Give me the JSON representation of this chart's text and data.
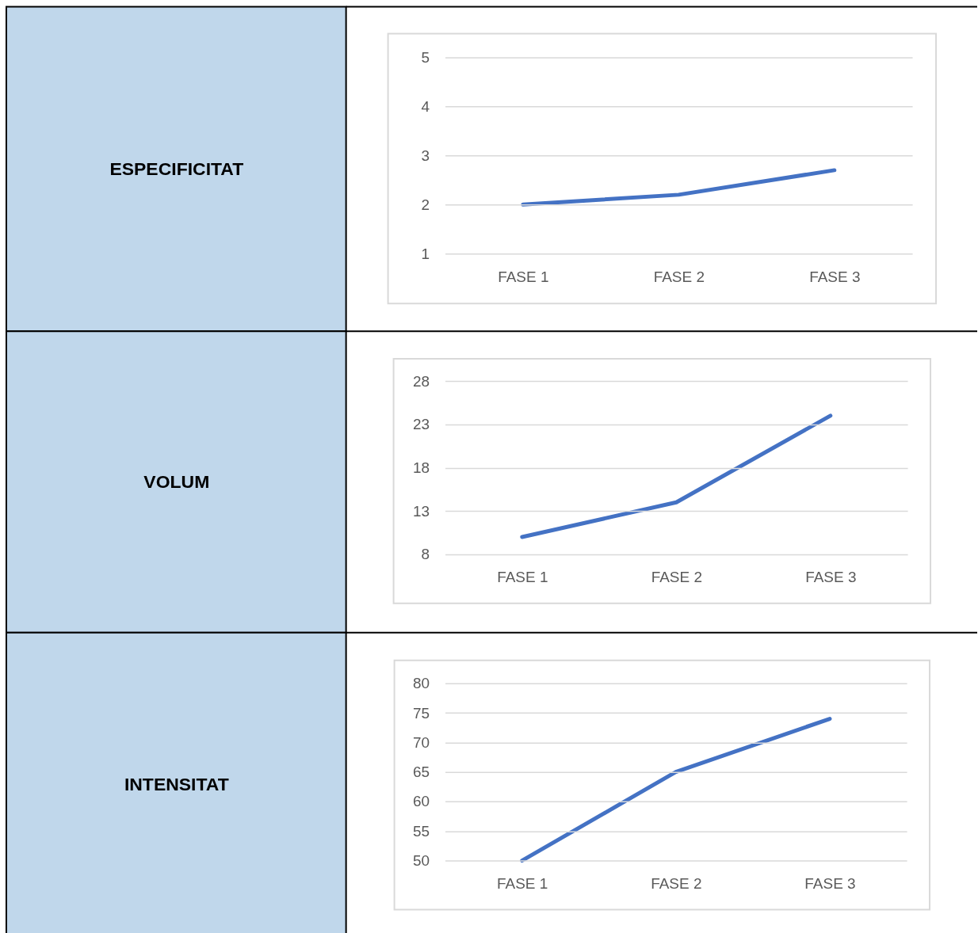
{
  "chart_data": [
    {
      "type": "line",
      "ylabel": "ESPECIFICITAT",
      "categories": [
        "FASE 1",
        "FASE 2",
        "FASE 3"
      ],
      "series": [
        {
          "color": "#4472c4",
          "values": [
            2,
            2.2,
            2.7
          ]
        }
      ],
      "ylim": [
        1,
        5
      ],
      "yticks": [
        1,
        2,
        3,
        4,
        5
      ],
      "grid": "y"
    },
    {
      "type": "line",
      "ylabel": "VOLUM",
      "categories": [
        "FASE 1",
        "FASE 2",
        "FASE 3"
      ],
      "series": [
        {
          "color": "#4472c4",
          "values": [
            10,
            14,
            24
          ]
        }
      ],
      "ylim": [
        8,
        28
      ],
      "yticks": [
        8,
        13,
        18,
        23,
        28
      ],
      "grid": "y"
    },
    {
      "type": "line",
      "ylabel": "INTENSITAT",
      "categories": [
        "FASE 1",
        "FASE 2",
        "FASE 3"
      ],
      "series": [
        {
          "color": "#4472c4",
          "values": [
            50,
            65,
            74
          ]
        }
      ],
      "ylim": [
        50,
        80
      ],
      "yticks": [
        50,
        55,
        60,
        65,
        70,
        75,
        80
      ],
      "grid": "y"
    }
  ]
}
